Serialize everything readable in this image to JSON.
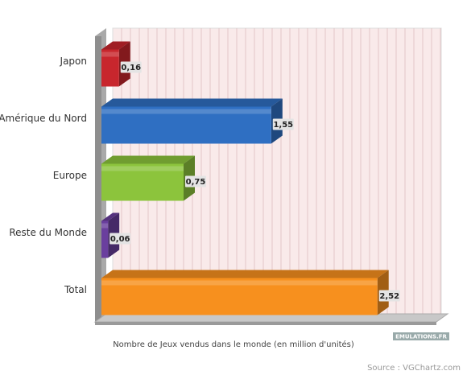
{
  "chart_data": {
    "type": "bar3d",
    "categories": [
      "Japon",
      "Amérique du Nord",
      "Europe",
      "Reste du Monde",
      "Total"
    ],
    "values": [
      0.16,
      1.55,
      0.75,
      0.06,
      2.52
    ],
    "value_labels": [
      "0,16",
      "1,55",
      "0,75",
      "0,06",
      "2,52"
    ],
    "colors": [
      "#c8262d",
      "#2f6fc2",
      "#8cc43c",
      "#6a3f9e",
      "#f7901e"
    ],
    "xlim": [
      0,
      3
    ],
    "xlabel": "Nombre de Jeux vendus dans le monde (en million d'unités)",
    "logo": "EMULATIONS.FR",
    "source": "Source : VGChartz.com"
  }
}
